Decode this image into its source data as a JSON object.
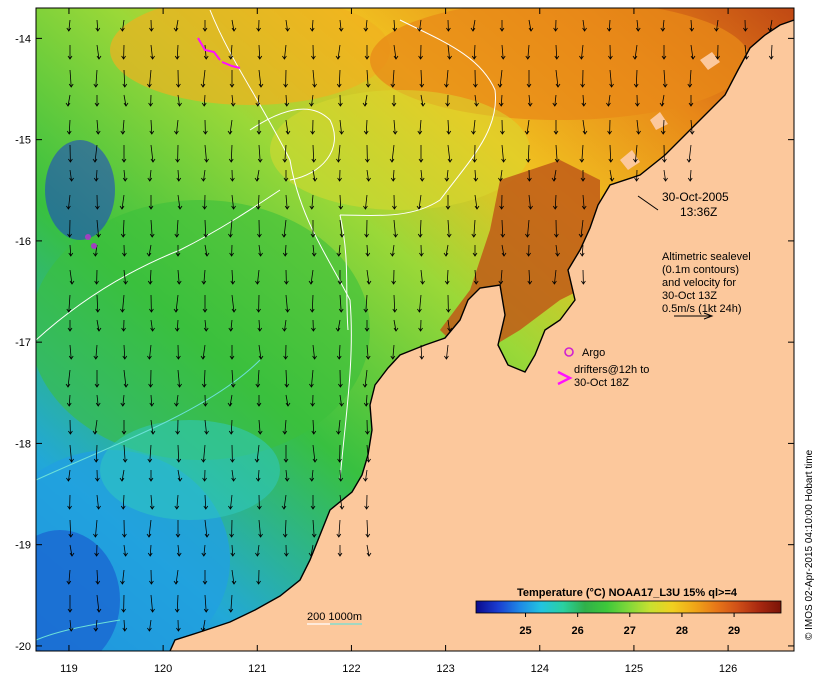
{
  "map": {
    "x_ticks": [
      "119",
      "120",
      "121",
      "122",
      "123",
      "124",
      "125",
      "126"
    ],
    "y_ticks": [
      "-14",
      "-15",
      "-16",
      "-17",
      "-18",
      "-19",
      "-20"
    ],
    "x_range": [
      118.65,
      126.7
    ],
    "y_range": [
      -20.05,
      -13.7
    ]
  },
  "annotations": {
    "date": "30-Oct-2005",
    "time": "13:36Z",
    "legend_lines": [
      "Altimetric sealevel",
      "(0.1m contours)",
      "and velocity for",
      "30-Oct 13Z",
      "0.5m/s (1kt 24h)"
    ],
    "argo_label": "Argo",
    "drifters_lines": [
      "drifters@12h to",
      "30-Oct 18Z"
    ],
    "depth_label": "200  1000m"
  },
  "colorbar": {
    "title": "Temperature (°C) NOAA17_L3U 15% ql>=4",
    "ticks": [
      "25",
      "26",
      "27",
      "28",
      "29"
    ],
    "colors": [
      "#0a0a8c",
      "#1a3cd0",
      "#1e88e6",
      "#22c4e0",
      "#2ad0a0",
      "#30b04a",
      "#3ec83a",
      "#80d83a",
      "#c8e030",
      "#f0d020",
      "#f0a818",
      "#e87818",
      "#d05018",
      "#a82810",
      "#7a1408"
    ]
  },
  "credit": "© IMOS 02-Apr-2015 04:10:00 Hobart time",
  "colors": {
    "land": "#fcc89c",
    "sea_green": "#3cbf3c",
    "sea_cyan": "#2ab8d0",
    "sea_warm": "#f0b020",
    "argo": "#d020d0",
    "drifter": "#ff10ff"
  }
}
